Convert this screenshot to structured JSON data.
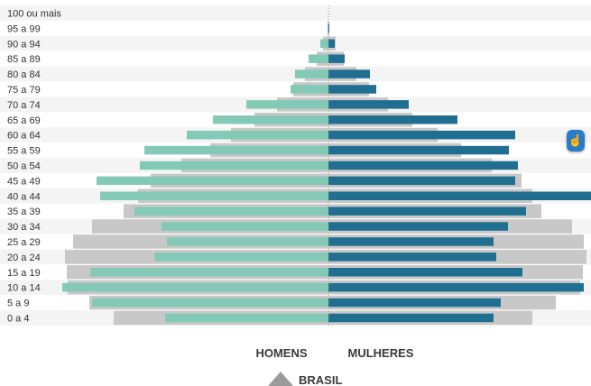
{
  "chart_data": {
    "type": "bar",
    "subtype": "population-pyramid",
    "categories": [
      "100 ou mais",
      "95 a 99",
      "90 a 94",
      "85 a 89",
      "80 a 84",
      "75 a 79",
      "70 a 74",
      "65 a 69",
      "60 a 64",
      "55 a 59",
      "50 a 54",
      "45 a 49",
      "40 a 44",
      "35 a 39",
      "30 a 34",
      "25 a 29",
      "20 a 24",
      "15 a 19",
      "10 a 14",
      "5 a 9",
      "0 a 4"
    ],
    "series": [
      {
        "name": "HOMENS",
        "side": "left",
        "color": "#84c9b6",
        "values": [
          0,
          1,
          9,
          22,
          37,
          42,
          91,
          128,
          157,
          204,
          209,
          257,
          253,
          215,
          185,
          179,
          193,
          264,
          295,
          262,
          181
        ]
      },
      {
        "name": "MULHERES",
        "side": "right",
        "color": "#206f91",
        "values": [
          0,
          1,
          7,
          18,
          46,
          53,
          89,
          143,
          207,
          200,
          210,
          207,
          293,
          219,
          199,
          183,
          186,
          215,
          283,
          191,
          183
        ]
      },
      {
        "name": "BRASIL",
        "role": "reference-outline",
        "color": "#c8c8c8",
        "left_values": [
          0,
          1,
          6,
          13,
          26,
          39,
          57,
          82,
          108,
          131,
          163,
          197,
          211,
          227,
          262,
          283,
          292,
          290,
          289,
          265,
          238
        ],
        "right_values": [
          0,
          1,
          8,
          17,
          31,
          45,
          66,
          93,
          121,
          147,
          181,
          214,
          226,
          236,
          270,
          283,
          286,
          282,
          279,
          252,
          226
        ]
      }
    ],
    "grid": false,
    "legend_position": "bottom"
  },
  "legend": {
    "left_label": "HOMENS",
    "right_label": "MULHERES",
    "reference_label": "BRASIL"
  },
  "colors": {
    "men": "#84c9b6",
    "women": "#206f91",
    "reference": "#c8c8c8",
    "stripe": "#f4f4f4",
    "reference_marker": "#9a9a9a",
    "fab": "#2b7bc8"
  },
  "fab": {
    "icon": "hand-pointer-icon"
  }
}
